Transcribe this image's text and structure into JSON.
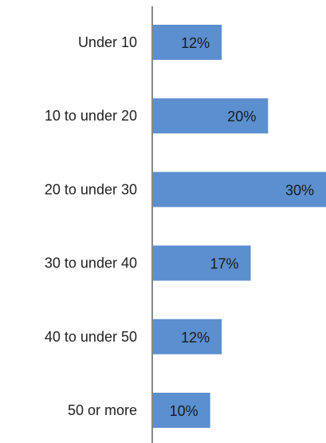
{
  "chart_data": {
    "type": "bar",
    "orientation": "horizontal",
    "categories": [
      "Under 10",
      "10 to under 20",
      "20 to under 30",
      "30 to under 40",
      "40 to under 50",
      "50 or more"
    ],
    "values": [
      12,
      20,
      30,
      17,
      12,
      10
    ],
    "value_labels": [
      "12%",
      "20%",
      "30%",
      "17%",
      "12%",
      "10%"
    ],
    "value_unit": "%",
    "xlim": [
      0,
      30
    ],
    "bar_color": "#5b8fcf",
    "axis_color": "#888888",
    "grid": false,
    "legend": "none",
    "title": "",
    "xlabel": "",
    "ylabel": ""
  }
}
